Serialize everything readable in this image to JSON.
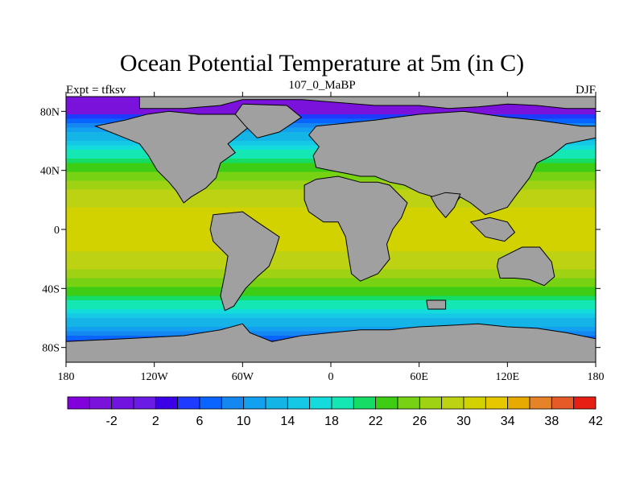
{
  "header": {
    "title": "Ocean Potential Temperature at 5m (in C)",
    "subtitle_center": "107_0_MaBP",
    "subtitle_left": "Expt = tfksv",
    "subtitle_right": "DJF"
  },
  "chart_data": {
    "type": "heatmap",
    "title": "Ocean Potential Temperature at 5m (in C)",
    "variable": "Ocean Potential Temperature",
    "units": "C",
    "xaxis": {
      "range": [
        -180,
        180
      ],
      "ticks": [
        -180,
        -120,
        -60,
        0,
        60,
        120,
        180
      ],
      "tick_labels": [
        "180",
        "120W",
        "60W",
        "0",
        "60E",
        "120E",
        "180"
      ]
    },
    "yaxis": {
      "range": [
        -90,
        90
      ],
      "ticks": [
        80,
        40,
        0,
        -40,
        -80
      ],
      "tick_labels": [
        "80N",
        "40N",
        "0",
        "40S",
        "80S"
      ]
    },
    "colorbar": {
      "levels": [
        -4,
        -2,
        0,
        2,
        4,
        6,
        8,
        10,
        12,
        14,
        16,
        18,
        20,
        22,
        24,
        26,
        28,
        30,
        32,
        34,
        36,
        38,
        40,
        42
      ],
      "labeled_values": [
        "-2",
        "2",
        "6",
        "10",
        "14",
        "18",
        "22",
        "26",
        "30",
        "34",
        "38",
        "42"
      ],
      "colors": [
        "#8200dc",
        "#7a12dc",
        "#7214e0",
        "#6a1ce6",
        "#3c00e6",
        "#1e3cff",
        "#0a64ff",
        "#1488f0",
        "#14a0f0",
        "#14b4e6",
        "#14c8e6",
        "#14dcdc",
        "#14e6b4",
        "#14dc64",
        "#3ccd14",
        "#78d214",
        "#a0d214",
        "#bed214",
        "#d2d200",
        "#e6c800",
        "#e6aa00",
        "#e68228",
        "#e65a28",
        "#e61e14"
      ]
    },
    "land_color": "#a0a0a0",
    "annotations": {
      "experiment": "Expt = tfksv",
      "period": "107_0_MaBP",
      "season": "DJF"
    }
  }
}
